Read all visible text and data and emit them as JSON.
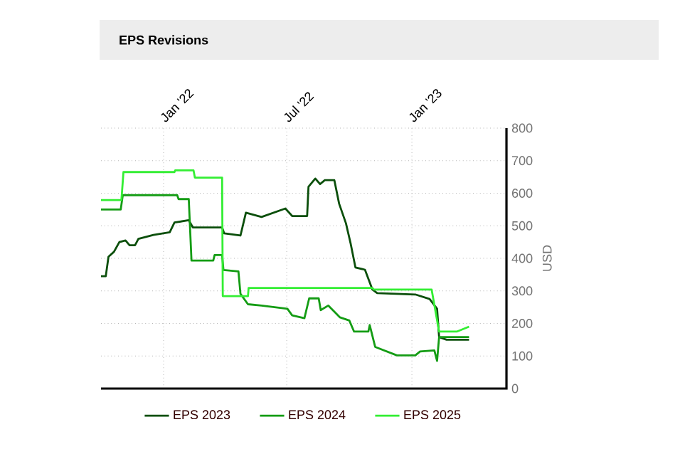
{
  "chart_data": {
    "type": "line",
    "title": "EPS Revisions",
    "ylabel": "USD",
    "xlim": [
      "2021-10-01",
      "2023-05-20"
    ],
    "xticks": [
      {
        "value": "2022-01-01",
        "label": "Jan '22"
      },
      {
        "value": "2022-07-01",
        "label": "Jul '22"
      },
      {
        "value": "2023-01-01",
        "label": "Jan '23"
      }
    ],
    "ylim": [
      0,
      800
    ],
    "yticks": [
      0,
      100,
      200,
      300,
      400,
      500,
      600,
      700,
      800
    ],
    "grid": true,
    "legend": "bottom",
    "marker": "none",
    "line_style": "solid",
    "series": [
      {
        "name": "EPS 2023",
        "color": "#0b4f0b",
        "x": [
          "2021-10-01",
          "2021-10-08",
          "2021-10-12",
          "2021-10-20",
          "2021-10-28",
          "2021-11-06",
          "2021-11-12",
          "2021-11-20",
          "2021-11-25",
          "2021-12-17",
          "2022-01-10",
          "2022-01-17",
          "2022-02-07",
          "2022-02-13",
          "2022-03-28",
          "2022-03-31",
          "2022-04-24",
          "2022-05-02",
          "2022-05-25",
          "2022-06-29",
          "2022-07-09",
          "2022-07-31",
          "2022-08-02",
          "2022-08-12",
          "2022-08-19",
          "2022-08-26",
          "2022-09-09",
          "2022-09-16",
          "2022-09-26",
          "2022-10-03",
          "2022-10-10",
          "2022-10-24",
          "2022-11-04",
          "2022-11-11",
          "2023-01-06",
          "2023-01-27",
          "2023-02-07",
          "2023-02-10",
          "2023-02-21",
          "2023-03-26"
        ],
        "values": [
          345,
          345,
          405,
          420,
          450,
          455,
          440,
          440,
          460,
          472,
          480,
          510,
          517,
          495,
          495,
          477,
          470,
          540,
          527,
          553,
          530,
          530,
          620,
          645,
          628,
          640,
          640,
          568,
          508,
          445,
          372,
          365,
          304,
          293,
          289,
          275,
          245,
          158,
          150,
          150
        ]
      },
      {
        "name": "EPS 2024",
        "color": "#149c14",
        "x": [
          "2021-10-01",
          "2021-10-30",
          "2021-11-02",
          "2022-01-21",
          "2022-01-23",
          "2022-02-07",
          "2022-02-11",
          "2022-03-15",
          "2022-03-17",
          "2022-03-28",
          "2022-03-30",
          "2022-04-21",
          "2022-04-24",
          "2022-05-05",
          "2022-05-25",
          "2022-07-02",
          "2022-07-09",
          "2022-07-27",
          "2022-08-03",
          "2022-08-17",
          "2022-08-20",
          "2022-08-31",
          "2022-09-17",
          "2022-10-01",
          "2022-10-08",
          "2022-10-29",
          "2022-10-31",
          "2022-11-08",
          "2022-12-10",
          "2023-01-06",
          "2023-01-13",
          "2023-02-03",
          "2023-02-07",
          "2023-02-10",
          "2023-03-26"
        ],
        "values": [
          550,
          550,
          594,
          594,
          582,
          582,
          393,
          393,
          410,
          410,
          364,
          360,
          291,
          259,
          255,
          245,
          225,
          216,
          277,
          277,
          241,
          255,
          219,
          209,
          175,
          175,
          195,
          128,
          102,
          102,
          114,
          117,
          85,
          158,
          158
        ]
      },
      {
        "name": "EPS 2025",
        "color": "#33ee33",
        "x": [
          "2021-10-01",
          "2021-10-31",
          "2021-11-03",
          "2022-01-17",
          "2022-01-18",
          "2022-02-14",
          "2022-02-16",
          "2022-03-28",
          "2022-03-29",
          "2022-05-05",
          "2022-05-06",
          "2022-11-04",
          "2022-11-06",
          "2023-01-30",
          "2023-02-10",
          "2023-03-08",
          "2023-03-26"
        ],
        "values": [
          579,
          579,
          665,
          665,
          670,
          670,
          648,
          648,
          284,
          284,
          309,
          309,
          304,
          304,
          175,
          175,
          190
        ]
      }
    ]
  }
}
